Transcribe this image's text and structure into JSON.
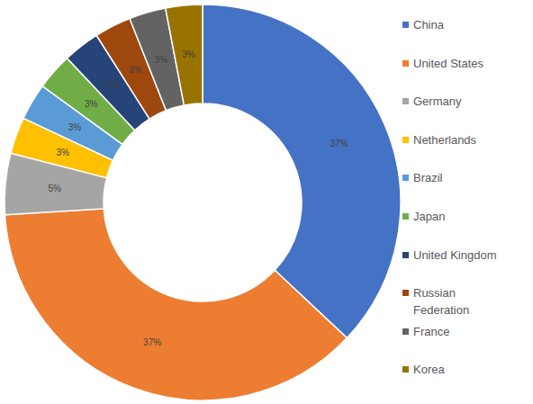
{
  "chart_data": {
    "type": "pie",
    "categories": [
      "China",
      "United States",
      "Germany",
      "Netherlands",
      "Brazil",
      "Japan",
      "United Kingdom",
      "Russian Federation",
      "France",
      "Korea"
    ],
    "values": [
      37,
      37,
      5,
      3,
      3,
      3,
      3,
      3,
      3,
      3
    ],
    "value_labels": [
      "37%",
      "37%",
      "5%",
      "3%",
      "3%",
      "3%",
      "3%",
      "3%",
      "3%",
      "3%"
    ],
    "colors": [
      "#4472c4",
      "#ed7d31",
      "#a5a5a5",
      "#ffc000",
      "#5b9bd5",
      "#70ad47",
      "#264478",
      "#9e480e",
      "#636363",
      "#997300"
    ],
    "data_labels": true,
    "legend": "right"
  }
}
